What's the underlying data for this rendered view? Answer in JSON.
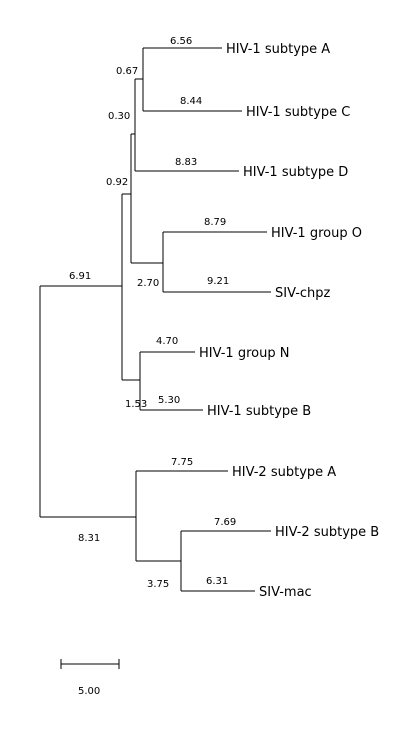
{
  "tree": {
    "taxa": {
      "A": "HIV-1 subtype A",
      "C": "HIV-1 subtype C",
      "D": "HIV-1 subtype D",
      "O": "HIV-1 group O",
      "CP": "SIV-chpz",
      "N": "HIV-1 group N",
      "B": "HIV-1 subtype B",
      "H2A": "HIV-2 subtype A",
      "H2B": "HIV-2 subtype B",
      "MAC": "SIV-mac"
    },
    "branch_lengths": {
      "A": "6.56",
      "AC": "0.67",
      "C": "8.44",
      "ACD": "0.30",
      "D": "8.83",
      "OCP": "0.92",
      "O": "8.79",
      "CP": "9.21",
      "OCP_inner": "2.70",
      "HIV1": "6.91",
      "N": "4.70",
      "NB": "1.53",
      "B": "5.30",
      "H2A": "7.75",
      "H2": "8.31",
      "H2B": "7.69",
      "MAC": "6.31",
      "BMAC": "3.75"
    },
    "scale_bar_label": "5.00"
  }
}
